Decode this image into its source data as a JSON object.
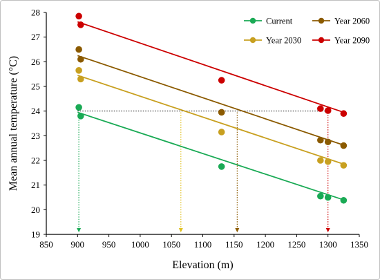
{
  "chart_data": {
    "type": "scatter",
    "xlabel": "Elevation (m)",
    "ylabel": "Mean annual temperature (°C)",
    "xlim": [
      850,
      1350
    ],
    "ylim": [
      19,
      28
    ],
    "xticks": [
      850,
      900,
      950,
      1000,
      1050,
      1100,
      1150,
      1200,
      1250,
      1300,
      1350
    ],
    "yticks": [
      19,
      20,
      21,
      22,
      23,
      24,
      25,
      26,
      27,
      28
    ],
    "legend_position": "top-right",
    "grid": false,
    "series": [
      {
        "name": "Current",
        "color": "#1aaa55",
        "points": [
          [
            902,
            24.15
          ],
          [
            905,
            23.8
          ],
          [
            1130,
            21.75
          ],
          [
            1288,
            20.55
          ],
          [
            1300,
            20.5
          ],
          [
            1325,
            20.38
          ]
        ],
        "trend": [
          [
            900,
            23.95
          ],
          [
            1325,
            20.4
          ]
        ]
      },
      {
        "name": "Year 2030",
        "color": "#c8a020",
        "points": [
          [
            902,
            25.65
          ],
          [
            905,
            25.3
          ],
          [
            1130,
            23.15
          ],
          [
            1288,
            22.0
          ],
          [
            1300,
            21.95
          ],
          [
            1325,
            21.8
          ]
        ],
        "trend": [
          [
            900,
            25.45
          ],
          [
            1325,
            21.85
          ]
        ]
      },
      {
        "name": "Year 2060",
        "color": "#8b5a00",
        "points": [
          [
            902,
            26.5
          ],
          [
            905,
            26.1
          ],
          [
            1130,
            23.95
          ],
          [
            1288,
            22.82
          ],
          [
            1300,
            22.75
          ],
          [
            1325,
            22.6
          ]
        ],
        "trend": [
          [
            900,
            26.25
          ],
          [
            1325,
            22.62
          ]
        ]
      },
      {
        "name": "Year 2090",
        "color": "#cc0000",
        "points": [
          [
            902,
            27.85
          ],
          [
            905,
            27.5
          ],
          [
            1130,
            25.25
          ],
          [
            1288,
            24.1
          ],
          [
            1300,
            24.02
          ],
          [
            1325,
            23.9
          ]
        ],
        "trend": [
          [
            900,
            27.62
          ],
          [
            1325,
            23.95
          ]
        ]
      }
    ],
    "reference_lines": {
      "level": 24.0,
      "horizontal": [
        [
          900,
          1300
        ]
      ],
      "verticals": [
        {
          "x": 902,
          "color": "#1aaa55"
        },
        {
          "x": 1065,
          "color": "#e0c020"
        },
        {
          "x": 1155,
          "color": "#8b5a00"
        },
        {
          "x": 1300,
          "color": "#cc0000"
        }
      ]
    }
  }
}
